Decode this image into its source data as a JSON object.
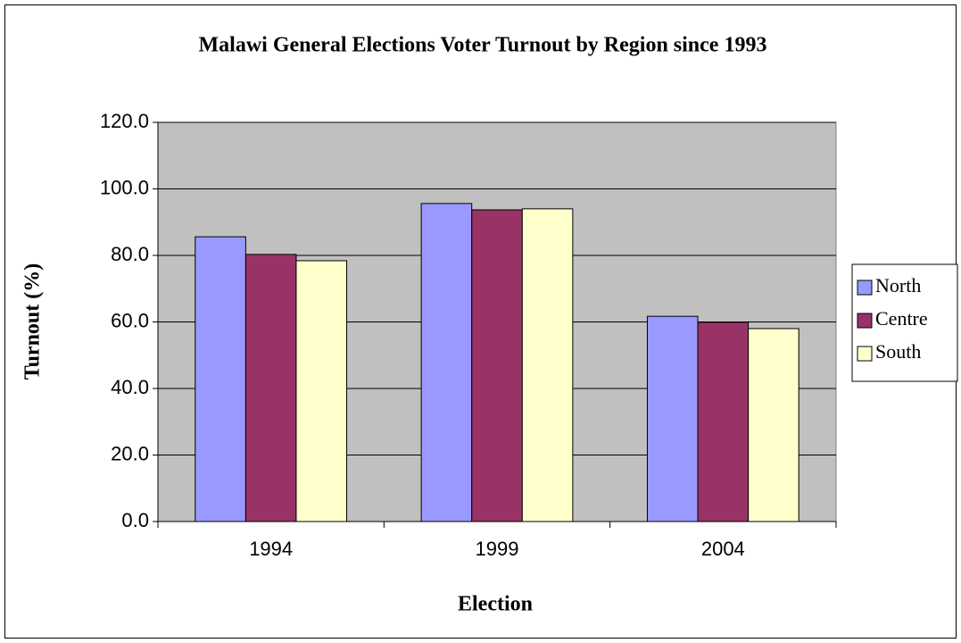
{
  "chart_data": {
    "type": "bar",
    "title": "Malawi General Elections Voter Turnout by Region since 1993",
    "x_label": "Election",
    "y_label": "Turnout (%)",
    "categories": [
      "1994",
      "1999",
      "2004"
    ],
    "series": [
      {
        "name": "North",
        "color": "#9999ff",
        "values": [
          85.6,
          95.6,
          61.7
        ]
      },
      {
        "name": "Centre",
        "color": "#993366",
        "values": [
          80.3,
          93.7,
          59.9
        ]
      },
      {
        "name": "South",
        "color": "#ffffcc",
        "values": [
          78.4,
          94.0,
          58.0
        ]
      }
    ],
    "ylim": [
      0,
      120
    ],
    "yticks": [
      {
        "value": 0,
        "label": "0.0"
      },
      {
        "value": 20,
        "label": "20.0"
      },
      {
        "value": 40,
        "label": "40.0"
      },
      {
        "value": 60,
        "label": "60.0"
      },
      {
        "value": 80,
        "label": "80.0"
      },
      {
        "value": 100,
        "label": "100.0"
      },
      {
        "value": 120,
        "label": "120.0"
      }
    ],
    "grid": true,
    "legend": "right"
  }
}
